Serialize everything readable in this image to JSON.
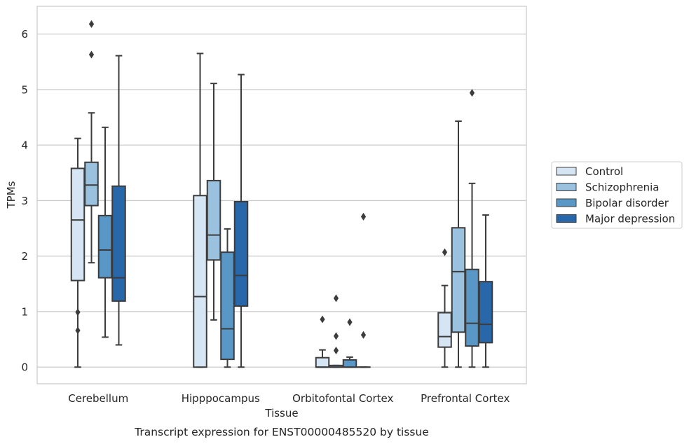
{
  "chart_data": {
    "type": "box",
    "caption": "Transcript expression for ENST00000485520 by tissue",
    "xlabel": "Tissue",
    "ylabel": "TPMs",
    "ylim": [
      -0.3,
      6.5
    ],
    "yticks": [
      0,
      1,
      2,
      3,
      4,
      5,
      6
    ],
    "categories": [
      "Cerebellum",
      "Hipppocampus",
      "Orbitofontal Cortex",
      "Prefrontal Cortex"
    ],
    "grid": "horizontal",
    "legend_position": "right",
    "series": [
      {
        "name": "Control",
        "color": "#d6e5f3",
        "boxes": [
          {
            "whislo": 0.0,
            "q1": 1.56,
            "med": 2.65,
            "q3": 3.58,
            "whishi": 4.12,
            "fliers": [
              0.99,
              0.66
            ]
          },
          {
            "whislo": 0.0,
            "q1": 0.0,
            "med": 1.27,
            "q3": 3.09,
            "whishi": 5.65,
            "fliers": []
          },
          {
            "whislo": 0.0,
            "q1": 0.0,
            "med": 0.0,
            "q3": 0.17,
            "whishi": 0.31,
            "fliers": [
              0.86
            ]
          },
          {
            "whislo": 0.0,
            "q1": 0.36,
            "med": 0.55,
            "q3": 0.98,
            "whishi": 1.47,
            "fliers": [
              2.07
            ]
          }
        ]
      },
      {
        "name": "Schizophrenia",
        "color": "#9ac1de",
        "boxes": [
          {
            "whislo": 1.88,
            "q1": 2.91,
            "med": 3.28,
            "q3": 3.69,
            "whishi": 4.58,
            "fliers": [
              6.18,
              5.63
            ]
          },
          {
            "whislo": 0.85,
            "q1": 1.93,
            "med": 2.38,
            "q3": 3.36,
            "whishi": 5.11,
            "fliers": []
          },
          {
            "whislo": 0.0,
            "q1": 0.0,
            "med": 0.0,
            "q3": 0.03,
            "whishi": 0.03,
            "fliers": [
              1.24,
              0.56,
              0.3
            ]
          },
          {
            "whislo": 0.0,
            "q1": 0.63,
            "med": 1.72,
            "q3": 2.51,
            "whishi": 4.43,
            "fliers": []
          }
        ]
      },
      {
        "name": "Bipolar disorder",
        "color": "#5897c6",
        "boxes": [
          {
            "whislo": 0.54,
            "q1": 1.61,
            "med": 2.11,
            "q3": 2.73,
            "whishi": 4.32,
            "fliers": []
          },
          {
            "whislo": 0.0,
            "q1": 0.14,
            "med": 0.69,
            "q3": 2.07,
            "whishi": 2.49,
            "fliers": []
          },
          {
            "whislo": 0.0,
            "q1": 0.0,
            "med": 0.0,
            "q3": 0.13,
            "whishi": 0.18,
            "fliers": [
              0.81
            ]
          },
          {
            "whislo": 0.0,
            "q1": 0.38,
            "med": 0.79,
            "q3": 1.76,
            "whishi": 3.31,
            "fliers": [
              4.94
            ]
          }
        ]
      },
      {
        "name": "Major depression",
        "color": "#2767aa",
        "boxes": [
          {
            "whislo": 0.4,
            "q1": 1.19,
            "med": 1.61,
            "q3": 3.26,
            "whishi": 5.61,
            "fliers": []
          },
          {
            "whislo": 0.0,
            "q1": 1.1,
            "med": 1.65,
            "q3": 2.98,
            "whishi": 5.27,
            "fliers": []
          },
          {
            "whislo": 0.0,
            "q1": 0.0,
            "med": 0.0,
            "q3": 0.0,
            "whishi": 0.0,
            "fliers": [
              2.71,
              0.58
            ]
          },
          {
            "whislo": 0.0,
            "q1": 0.44,
            "med": 0.77,
            "q3": 1.54,
            "whishi": 2.74,
            "fliers": []
          }
        ]
      }
    ]
  }
}
